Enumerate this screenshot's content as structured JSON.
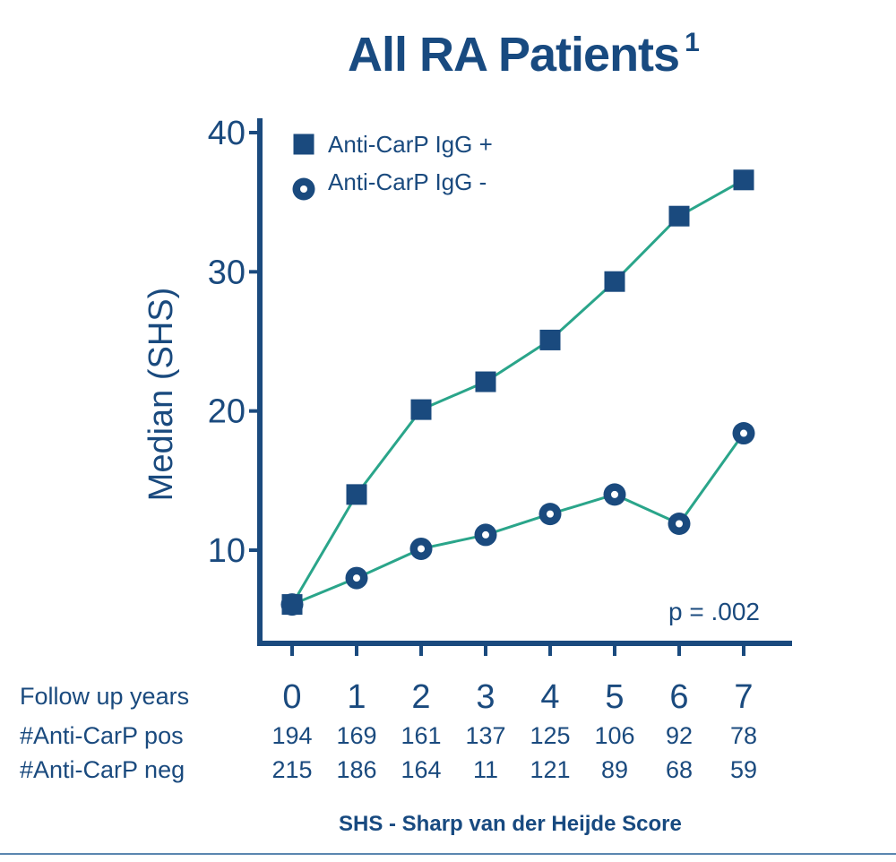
{
  "title": "All RA Patients",
  "title_superscript": "1",
  "footnote": "SHS - Sharp van der Heijde Score",
  "annotation": "p = .002",
  "colors": {
    "marker": "#1a4a7e",
    "line": "#2aa58a",
    "text": "#1a4a7e"
  },
  "table": {
    "rows": [
      {
        "label": "Follow up years",
        "values": [
          "0",
          "1",
          "2",
          "3",
          "4",
          "5",
          "6",
          "7"
        ]
      },
      {
        "label": "#Anti-CarP pos",
        "values": [
          "194",
          "169",
          "161",
          "137",
          "125",
          "106",
          "92",
          "78"
        ]
      },
      {
        "label": "#Anti-CarP neg",
        "values": [
          "215",
          "186",
          "164",
          "11",
          "121",
          "89",
          "68",
          "59"
        ]
      }
    ]
  },
  "chart_data": {
    "type": "line",
    "title": "All RA Patients",
    "xlabel": "Follow up years",
    "ylabel": "Median (SHS)",
    "x": [
      0,
      1,
      2,
      3,
      4,
      5,
      6,
      7
    ],
    "xlim": [
      0,
      7
    ],
    "ylim": [
      3.5,
      41
    ],
    "yticks": [
      10,
      20,
      30,
      40
    ],
    "grid": false,
    "legend_position": "top-left",
    "series": [
      {
        "name": "Anti-CarP IgG +",
        "marker": "square",
        "values": [
          6.1,
          14.0,
          20.1,
          22.1,
          25.1,
          29.3,
          34.0,
          36.6
        ]
      },
      {
        "name": "Anti-CarP IgG -",
        "marker": "ring",
        "values": [
          6.1,
          8.0,
          10.1,
          11.1,
          12.6,
          14.0,
          11.9,
          18.4
        ]
      }
    ]
  }
}
